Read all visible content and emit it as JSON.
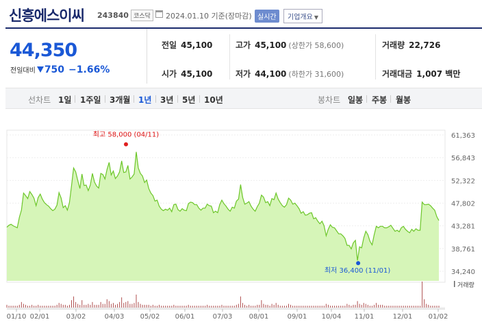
{
  "stock": {
    "name": "신흥에스이씨",
    "code": "243840",
    "market": "코스닥",
    "date_text": "2024.01.10 기준(장마감)",
    "live_label": "실시간",
    "info_label": "기업개요"
  },
  "price": {
    "current": "44,350",
    "diff_label": "전일대비",
    "diff_value": "750",
    "diff_pct": "−1.66%"
  },
  "stats": {
    "prev_close_label": "전일",
    "prev_close": "45,100",
    "high_label": "고가",
    "high": "45,100",
    "upper_limit": "(상한가 58,600)",
    "volume_label": "거래량",
    "volume": "22,726",
    "open_label": "시가",
    "open": "45,100",
    "low_label": "저가",
    "low": "44,100",
    "lower_limit": "(하한가 31,600)",
    "amount_label": "거래대금",
    "amount": "1,007 백만"
  },
  "periods": {
    "line_label": "선차트",
    "line_options": [
      "1일",
      "1주일",
      "3개월",
      "1년",
      "3년",
      "5년",
      "10년"
    ],
    "selected": "1년",
    "candle_label": "봉차트",
    "candle_options": [
      "일봉",
      "주봉",
      "월봉"
    ]
  },
  "chart_data": {
    "type": "area",
    "x_tick_labels": [
      "01/10",
      "02/01",
      "03/02",
      "04/03",
      "05/02",
      "06/01",
      "07/03",
      "08/01",
      "09/01",
      "10/04",
      "11/01",
      "12/01",
      "01/02"
    ],
    "y_tick_labels": [
      "61,363",
      "56,843",
      "52,322",
      "47,802",
      "43,281",
      "38,761",
      "34,240"
    ],
    "ylim": [
      34240,
      61363
    ],
    "max_annotation": "최고 58,000 (04/11)",
    "max_value": 58000,
    "max_index": 62,
    "min_annotation": "최저 36,400 (11/01)",
    "min_value": 36400,
    "min_index": 168,
    "volume_label": "거래량",
    "fill_color": "#d6f5b8",
    "line_color": "#6cc629",
    "series": [
      {
        "values": [
          43000,
          43400,
          43600,
          43300,
          43100,
          42900,
          45000,
          46400,
          49800,
          49300,
          48700,
          50100,
          49500,
          48800,
          47300,
          48900,
          49600,
          48600,
          47900,
          47500,
          47200,
          46700,
          46300,
          46600,
          47400,
          49900,
          48800,
          46900,
          47300,
          46400,
          47900,
          51300,
          54800,
          54000,
          52300,
          50700,
          53600,
          51300,
          51400,
          50300,
          51400,
          53700,
          52000,
          51200,
          50800,
          53700,
          53500,
          52600,
          54500,
          55900,
          53400,
          54200,
          52700,
          53200,
          54000,
          56200,
          53900,
          54000,
          55300,
          52600,
          53000,
          53600,
          58000,
          54800,
          53700,
          53200,
          51900,
          52400,
          50700,
          49800,
          49300,
          48200,
          48400,
          47200,
          46600,
          46300,
          46600,
          46400,
          46800,
          46100,
          47500,
          47600,
          46500,
          46200,
          46700,
          46400,
          46300,
          47700,
          48000,
          47900,
          47500,
          47500,
          46800,
          46400,
          46800,
          46800,
          47600,
          47300,
          47200,
          45900,
          46200,
          45900,
          47500,
          48400,
          47700,
          47200,
          46600,
          46200,
          47000,
          46800,
          48200,
          48600,
          51500,
          48900,
          47600,
          47800,
          48100,
          47200,
          46600,
          46200,
          47100,
          47800,
          49400,
          49000,
          47900,
          48100,
          47300,
          48700,
          48500,
          49800,
          48600,
          47900,
          47300,
          47000,
          47500,
          48800,
          48400,
          47600,
          47800,
          47300,
          46700,
          45800,
          46100,
          45400,
          45500,
          45800,
          45900,
          44700,
          44900,
          44200,
          43700,
          44200,
          43300,
          41300,
          42600,
          43500,
          43000,
          42900,
          42300,
          41700,
          41700,
          41300,
          40800,
          39400,
          39400,
          38700,
          39900,
          40400,
          36400,
          39100,
          38900,
          40900,
          42200,
          41500,
          40200,
          39500,
          41500,
          43200,
          42900,
          43200,
          43200,
          42900,
          42900,
          43100,
          43400,
          42800,
          42200,
          42400,
          42100,
          42900,
          43200,
          42600,
          42200,
          41900,
          42600,
          42200,
          42700,
          42400,
          42400,
          48000,
          47500,
          47500,
          47600,
          47300,
          46800,
          46400,
          45100,
          44350
        ]
      }
    ],
    "volume": [
      3,
      2,
      2,
      2,
      2,
      2,
      3,
      6,
      4,
      3,
      2,
      2,
      3,
      2,
      2,
      3,
      2,
      2,
      2,
      2,
      2,
      2,
      2,
      2,
      3,
      5,
      4,
      3,
      3,
      2,
      3,
      8,
      12,
      6,
      4,
      3,
      8,
      3,
      3,
      4,
      3,
      6,
      3,
      3,
      3,
      6,
      4,
      4,
      9,
      7,
      4,
      5,
      3,
      4,
      6,
      11,
      5,
      6,
      7,
      4,
      4,
      5,
      14,
      6,
      4,
      3,
      3,
      3,
      3,
      2,
      3,
      2,
      2,
      3,
      2,
      2,
      2,
      2,
      2,
      2,
      3,
      2,
      2,
      2,
      2,
      2,
      2,
      3,
      2,
      2,
      2,
      2,
      2,
      2,
      2,
      2,
      3,
      2,
      2,
      2,
      2,
      2,
      2,
      3,
      2,
      2,
      2,
      2,
      2,
      2,
      3,
      4,
      12,
      5,
      3,
      2,
      3,
      2,
      2,
      2,
      3,
      3,
      8,
      4,
      3,
      3,
      2,
      4,
      3,
      5,
      3,
      2,
      2,
      2,
      2,
      4,
      3,
      2,
      2,
      2,
      2,
      2,
      2,
      2,
      2,
      2,
      2,
      2,
      2,
      2,
      2,
      2,
      2,
      4,
      3,
      2,
      2,
      2,
      2,
      2,
      2,
      2,
      2,
      4,
      3,
      2,
      3,
      3,
      7,
      4,
      3,
      5,
      4,
      3,
      2,
      2,
      3,
      5,
      3,
      3,
      3,
      2,
      2,
      2,
      2,
      2,
      2,
      2,
      2,
      2,
      2,
      2,
      2,
      2,
      2,
      2,
      2,
      2,
      2,
      28,
      9,
      4,
      3,
      2,
      2,
      2,
      2,
      2
    ]
  }
}
